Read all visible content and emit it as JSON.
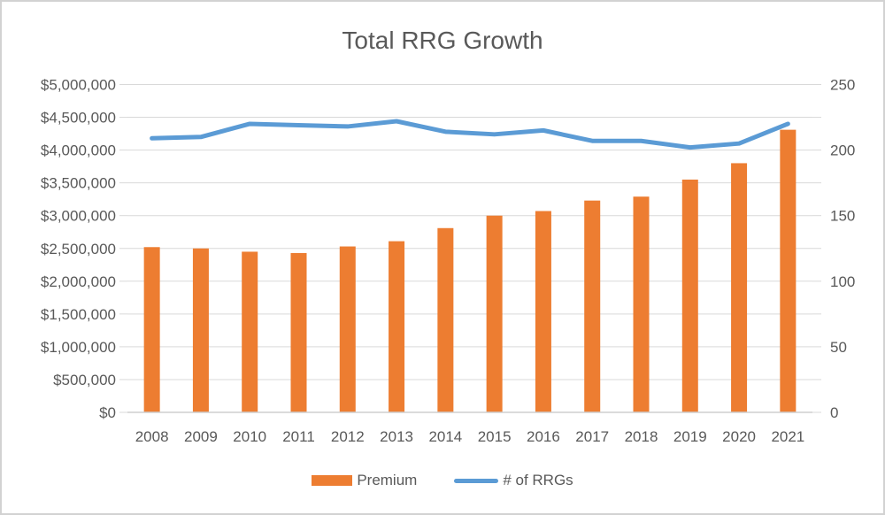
{
  "window": {
    "background_color": "#ffffff",
    "border_color": "#d2d2d2"
  },
  "chart_data": {
    "type": "combo-bar-line",
    "title": "Total RRG Growth",
    "categories": [
      "2008",
      "2009",
      "2010",
      "2011",
      "2012",
      "2013",
      "2014",
      "2015",
      "2016",
      "2017",
      "2018",
      "2019",
      "2020",
      "2021"
    ],
    "series": [
      {
        "name": "Premium",
        "type": "bar",
        "axis": "left",
        "color": "#ED7D31",
        "values": [
          2520000,
          2500000,
          2450000,
          2430000,
          2530000,
          2610000,
          2810000,
          3000000,
          3070000,
          3230000,
          3290000,
          3550000,
          3800000,
          4310000
        ]
      },
      {
        "name": "# of RRGs",
        "type": "line",
        "axis": "right",
        "color": "#5B9BD5",
        "values": [
          209,
          210,
          220,
          219,
          218,
          222,
          214,
          212,
          215,
          207,
          207,
          202,
          205,
          220
        ]
      }
    ],
    "left_axis": {
      "min": 0,
      "max": 5000000,
      "step": 500000,
      "tick_labels": [
        "$0",
        "$500,000",
        "$1,000,000",
        "$1,500,000",
        "$2,000,000",
        "$2,500,000",
        "$3,000,000",
        "$3,500,000",
        "$4,000,000",
        "$4,500,000",
        "$5,000,000"
      ]
    },
    "right_axis": {
      "min": 0,
      "max": 250,
      "minor_step": 25,
      "label_step": 50,
      "tick_labels": [
        "0",
        "50",
        "100",
        "150",
        "200",
        "250"
      ]
    },
    "grid": true,
    "legend_position": "bottom",
    "colors": {
      "grid": "#d9d9d9",
      "axis_line": "#cfcfcf",
      "axis_text": "#595959",
      "title_text": "#595959"
    }
  },
  "legend": {
    "items": [
      {
        "label": "Premium",
        "marker": "bar-swatch"
      },
      {
        "label": "# of RRGs",
        "marker": "line-swatch"
      }
    ]
  }
}
